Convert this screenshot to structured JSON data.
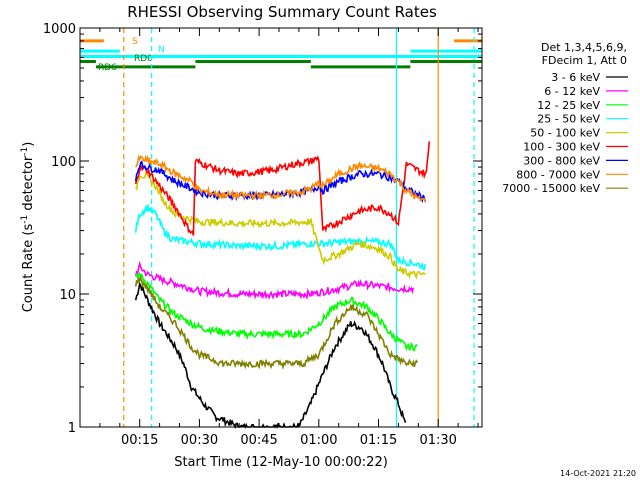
{
  "chart_data": {
    "type": "line",
    "title": "RHESSI Observing Summary Count Rates",
    "xlabel": "Start Time (12-May-10 00:00:22)",
    "ylabel": "Count Rate (s⁻¹ detector⁻¹)",
    "yscale": "log",
    "ylim": [
      1,
      1000
    ],
    "xlim_minutes": [
      0,
      101
    ],
    "x_ticks": [
      "00:15",
      "00:30",
      "00:45",
      "01:00",
      "01:15",
      "01:30"
    ],
    "x_tick_minutes": [
      15,
      30,
      45,
      60,
      75,
      90
    ],
    "y_ticks": [
      "1",
      "10",
      "100",
      "1000"
    ],
    "y_tick_values": [
      1,
      10,
      100,
      1000
    ],
    "legend_header": [
      "Det 1,3,4,5,6,9,",
      "FDecim 1, Att 0"
    ],
    "timestamp": "14-Oct-2021 21:20",
    "background_color": "#ffffff",
    "series": [
      {
        "name": "3 - 6 keV",
        "color": "#000000",
        "x": [
          0,
          14,
          15,
          17,
          20,
          24,
          26,
          28,
          31,
          34,
          40,
          50,
          55,
          58,
          61,
          64,
          68,
          71,
          74,
          76,
          78,
          80,
          82
        ],
        "values": [
          null,
          9,
          12,
          9,
          6,
          4,
          3,
          2,
          1.5,
          1.2,
          1,
          1,
          1,
          1.5,
          2.5,
          4,
          6,
          5.5,
          4,
          3,
          2,
          1.5,
          1
        ]
      },
      {
        "name": "6 - 12 keV",
        "color": "#ff00ff",
        "x": [
          0,
          14,
          15,
          17,
          20,
          24,
          28,
          30,
          40,
          50,
          58,
          65,
          70,
          75,
          80,
          84
        ],
        "values": [
          null,
          14,
          16,
          14,
          13,
          12,
          11,
          10.5,
          10,
          10,
          10,
          11,
          12,
          11.5,
          11,
          11
        ]
      },
      {
        "name": "12 - 25 keV",
        "color": "#00ff00",
        "x": [
          0,
          14,
          15,
          17,
          20,
          24,
          28,
          31,
          36,
          40,
          50,
          56,
          60,
          64,
          68,
          72,
          75,
          78,
          82,
          85
        ],
        "values": [
          null,
          13,
          14,
          12,
          9,
          7,
          6,
          5.5,
          5.2,
          5,
          5,
          5,
          6,
          8,
          9,
          8,
          6.5,
          5,
          4,
          4
        ]
      },
      {
        "name": "25 - 50 keV",
        "color": "#00ffff",
        "x": [
          0,
          14,
          15,
          17,
          19,
          21,
          23,
          26,
          28,
          30,
          40,
          50,
          58,
          61,
          65,
          70,
          75,
          78,
          80,
          84,
          87
        ],
        "values": [
          null,
          30,
          40,
          45,
          40,
          30,
          26,
          25,
          24.5,
          24,
          23,
          23,
          24,
          24,
          24.5,
          25,
          24.5,
          24,
          18,
          17,
          16
        ]
      },
      {
        "name": "50 - 100 keV",
        "color": "#cccc00",
        "x": [
          0,
          14,
          15,
          17,
          19,
          21,
          24,
          27,
          28.5,
          30,
          40,
          50,
          58,
          61,
          65,
          70,
          75,
          78,
          80,
          84,
          87
        ],
        "values": [
          null,
          60,
          80,
          75,
          65,
          50,
          40,
          37,
          36,
          35,
          34,
          34,
          35,
          18,
          20,
          24,
          22,
          19,
          15,
          14,
          14
        ]
      },
      {
        "name": "100 - 300 keV",
        "color": "#ff0000",
        "x": [
          0,
          14,
          15,
          17,
          20,
          24,
          27,
          28.5,
          29,
          31,
          35,
          40,
          48,
          54,
          58,
          60,
          61,
          65,
          70,
          75,
          78,
          80,
          82,
          85,
          87,
          88
        ],
        "values": [
          null,
          65,
          90,
          85,
          65,
          45,
          32,
          28,
          100,
          95,
          85,
          80,
          85,
          95,
          100,
          105,
          30,
          35,
          42,
          45,
          40,
          34,
          95,
          85,
          80,
          170
        ]
      },
      {
        "name": "300 - 800 keV",
        "color": "#0000ff",
        "x": [
          0,
          14,
          15,
          17,
          20,
          24,
          28,
          30,
          35,
          40,
          45,
          50,
          55,
          58,
          60,
          61,
          65,
          70,
          75,
          78,
          80,
          82,
          85,
          87
        ],
        "values": [
          null,
          75,
          95,
          90,
          85,
          70,
          62,
          58,
          55,
          55,
          55,
          56,
          58,
          60,
          65,
          60,
          70,
          80,
          80,
          75,
          70,
          62,
          55,
          52
        ]
      },
      {
        "name": "800 - 7000 keV",
        "color": "#ff8800",
        "x": [
          0,
          14,
          15,
          17,
          20,
          24,
          28,
          30,
          35,
          40,
          45,
          50,
          55,
          58,
          60,
          61,
          65,
          70,
          75,
          78,
          80,
          82,
          85,
          87
        ],
        "values": [
          null,
          90,
          105,
          100,
          95,
          80,
          70,
          60,
          56,
          55,
          55,
          56,
          58,
          62,
          68,
          65,
          80,
          92,
          88,
          80,
          70,
          60,
          52,
          50
        ]
      },
      {
        "name": "7000 - 15000 keV",
        "color": "#808000",
        "x": [
          0,
          14,
          15,
          17,
          20,
          24,
          28,
          30,
          36,
          40,
          50,
          56,
          60,
          64,
          68,
          72,
          75,
          78,
          82,
          85
        ],
        "values": [
          null,
          12,
          13,
          11,
          8,
          6,
          4,
          3.5,
          3,
          3,
          3,
          3,
          3.5,
          6,
          8,
          7,
          5,
          3.5,
          3,
          3
        ]
      }
    ],
    "flag_labels": {
      "s": "S",
      "n": "N",
      "rd0": "RD0",
      "rd6": "RD6"
    },
    "flag_bars": [
      {
        "label_key": "s",
        "color": "#ff8800",
        "value": 800,
        "segments": [
          [
            0,
            6
          ],
          [
            94,
            101
          ]
        ]
      },
      {
        "label_key": "n",
        "color": "#00ffff",
        "value": 670,
        "segments": [
          [
            0,
            10
          ],
          [
            83,
            101
          ]
        ]
      },
      {
        "label_key": "rd0",
        "color": "#00ffff",
        "value": 610,
        "segments": [
          [
            0,
            101
          ]
        ]
      },
      {
        "label_key": "rd6",
        "color": "#008000",
        "value": 560,
        "segments": [
          [
            0,
            4
          ],
          [
            29,
            58
          ],
          [
            83,
            101
          ]
        ]
      },
      {
        "label_key": null,
        "color": "#008000",
        "value": 510,
        "segments": [
          [
            4,
            29
          ],
          [
            58,
            83
          ]
        ]
      }
    ],
    "vertical_lines": [
      {
        "minute": 11,
        "color": "#ff8800",
        "dashed": true
      },
      {
        "minute": 18,
        "color": "#00ffff",
        "dashed": true
      },
      {
        "minute": 79.5,
        "color": "#00ffff",
        "dashed": false
      },
      {
        "minute": 90,
        "color": "#ff8800",
        "dashed": false
      },
      {
        "minute": 99,
        "color": "#00ffff",
        "dashed": true
      }
    ]
  }
}
